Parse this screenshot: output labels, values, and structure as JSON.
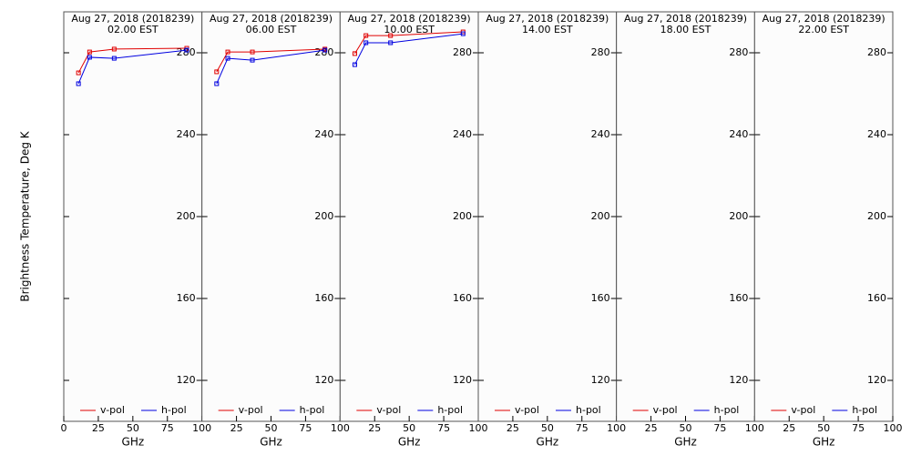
{
  "chart_data": [
    {
      "type": "line",
      "title": "Aug 27, 2018 (2018239)",
      "subtitle": "02.00 EST",
      "ylabel": "Brightness Temperature, Deg K",
      "xlabel": "GHz",
      "x": [
        10.65,
        18.7,
        36.5,
        89
      ],
      "series": [
        {
          "name": "v-pol",
          "color": "#e00000",
          "values": [
            270.2,
            280.4,
            281.8,
            282.2
          ]
        },
        {
          "name": "h-pol",
          "color": "#0000e0",
          "values": [
            264.9,
            277.8,
            277.3,
            281.3
          ]
        }
      ],
      "xlim": [
        0,
        100
      ],
      "xticks": [
        0,
        25,
        50,
        75,
        100
      ],
      "ylim": [
        100,
        300
      ],
      "yticks": [
        120,
        160,
        200,
        240,
        280
      ]
    },
    {
      "type": "line",
      "title": "Aug 27, 2018 (2018239)",
      "subtitle": "06.00 EST",
      "xlabel": "GHz",
      "x": [
        10.65,
        18.7,
        36.5,
        89
      ],
      "series": [
        {
          "name": "v-pol",
          "color": "#e00000",
          "values": [
            270.7,
            280.4,
            280.4,
            281.8
          ]
        },
        {
          "name": "h-pol",
          "color": "#0000e0",
          "values": [
            264.9,
            277.3,
            276.4,
            281.3
          ]
        }
      ],
      "xlim": [
        0,
        100
      ],
      "xticks": [
        25,
        50,
        75,
        100
      ],
      "ylim": [
        100,
        300
      ],
      "yticks": [
        120,
        160,
        200,
        240,
        280
      ]
    },
    {
      "type": "line",
      "title": "Aug 27, 2018 (2018239)",
      "subtitle": "10.00 EST",
      "xlabel": "GHz",
      "x": [
        10.65,
        18.7,
        36.5,
        89
      ],
      "series": [
        {
          "name": "v-pol",
          "color": "#e00000",
          "values": [
            279.6,
            288.4,
            288.4,
            290.2
          ]
        },
        {
          "name": "h-pol",
          "color": "#0000e0",
          "values": [
            274.2,
            284.9,
            284.9,
            289.3
          ]
        }
      ],
      "xlim": [
        0,
        100
      ],
      "xticks": [
        25,
        50,
        75,
        100
      ],
      "ylim": [
        100,
        300
      ],
      "yticks": [
        120,
        160,
        200,
        240,
        280
      ]
    },
    {
      "type": "line",
      "title": "Aug 27, 2018 (2018239)",
      "subtitle": "14.00 EST",
      "xlabel": "GHz",
      "x": [
        10.65,
        18.7,
        36.5,
        89
      ],
      "series": [
        {
          "name": "v-pol",
          "color": "#e00000",
          "values": [
            null,
            null,
            null,
            null
          ]
        },
        {
          "name": "h-pol",
          "color": "#0000e0",
          "values": [
            null,
            null,
            null,
            null
          ]
        }
      ],
      "xlim": [
        0,
        100
      ],
      "xticks": [
        25,
        50,
        75,
        100
      ],
      "ylim": [
        100,
        300
      ],
      "yticks": [
        120,
        160,
        200,
        240,
        280
      ]
    },
    {
      "type": "line",
      "title": "Aug 27, 2018 (2018239)",
      "subtitle": "18.00 EST",
      "xlabel": "GHz",
      "x": [
        10.65,
        18.7,
        36.5,
        89
      ],
      "series": [
        {
          "name": "v-pol",
          "color": "#e00000",
          "values": [
            null,
            null,
            null,
            null
          ]
        },
        {
          "name": "h-pol",
          "color": "#0000e0",
          "values": [
            null,
            null,
            null,
            null
          ]
        }
      ],
      "xlim": [
        0,
        100
      ],
      "xticks": [
        25,
        50,
        75,
        100
      ],
      "ylim": [
        100,
        300
      ],
      "yticks": [
        120,
        160,
        200,
        240,
        280
      ]
    },
    {
      "type": "line",
      "title": "Aug 27, 2018 (2018239)",
      "subtitle": "22.00 EST",
      "xlabel": "GHz",
      "x": [
        10.65,
        18.7,
        36.5,
        89
      ],
      "series": [
        {
          "name": "v-pol",
          "color": "#e00000",
          "values": [
            null,
            null,
            null,
            null
          ]
        },
        {
          "name": "h-pol",
          "color": "#0000e0",
          "values": [
            null,
            null,
            null,
            null
          ]
        }
      ],
      "xlim": [
        0,
        100
      ],
      "xticks": [
        25,
        50,
        75,
        100
      ],
      "ylim": [
        100,
        300
      ],
      "yticks": [
        120,
        160,
        200,
        240,
        280
      ]
    }
  ]
}
